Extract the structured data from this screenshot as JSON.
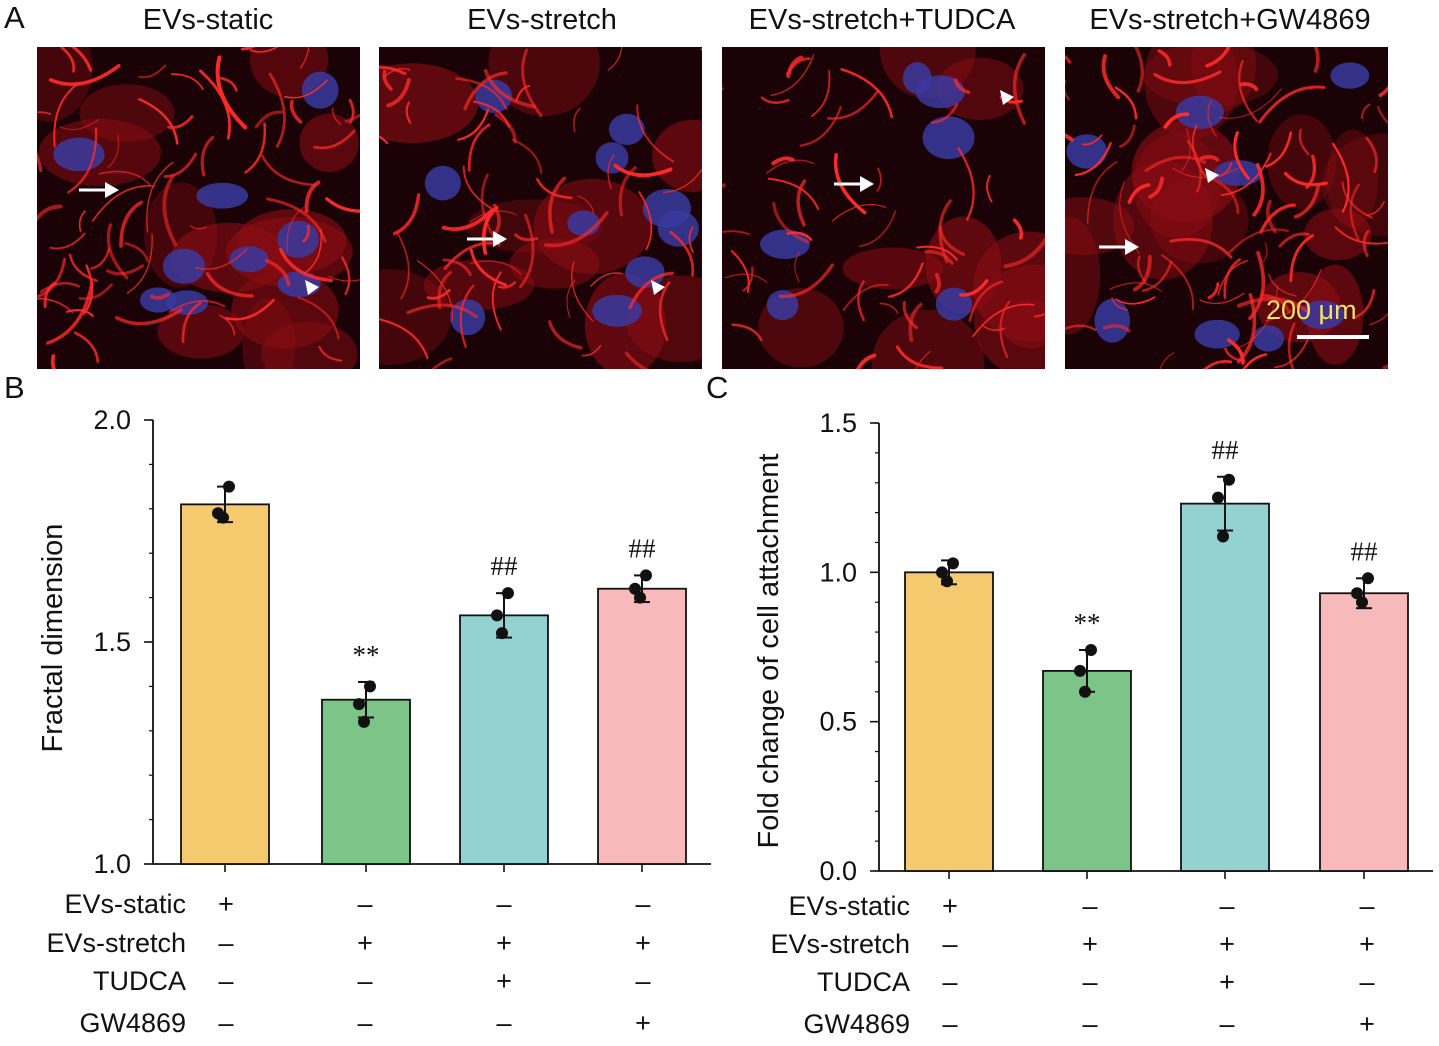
{
  "panel_labels": {
    "a": "A",
    "b": "B",
    "c": "C"
  },
  "micrographs": [
    {
      "title": "EVs-static",
      "seed": 11,
      "nuclei": 0.85,
      "fill": 0.65
    },
    {
      "title": "EVs-stretch",
      "seed": 23,
      "nuclei": 1.0,
      "fill": 0.45
    },
    {
      "title": "EVs-stretch+TUDCA",
      "seed": 37,
      "nuclei": 0.45,
      "fill": 0.35
    },
    {
      "title": "EVs-stretch+GW4869",
      "seed": 53,
      "nuclei": 0.7,
      "fill": 0.8
    }
  ],
  "scale_bar": {
    "label": "200 μm"
  },
  "colors": {
    "static": "#f5c96e",
    "stretch": "#7cc488",
    "tudca": "#93d2d0",
    "gw4869": "#f7b9b9",
    "actin": "#ff2a2a",
    "nucleus": "#3a3aa0",
    "background": "#1a0206"
  },
  "treatment_table": {
    "rows": [
      {
        "label": "EVs-static",
        "signs": [
          "+",
          "–",
          "–",
          "–"
        ]
      },
      {
        "label": "EVs-stretch",
        "signs": [
          "–",
          "+",
          "+",
          "+"
        ]
      },
      {
        "label": "TUDCA",
        "signs": [
          "–",
          "–",
          "+",
          "–"
        ]
      },
      {
        "label": "GW4869",
        "signs": [
          "–",
          "–",
          "–",
          "+"
        ]
      }
    ]
  },
  "chart_data": [
    {
      "panel": "B",
      "type": "bar",
      "categories": [
        "EVs-static",
        "EVs-stretch",
        "EVs-stretch+TUDCA",
        "EVs-stretch+GW4869"
      ],
      "values": [
        1.81,
        1.37,
        1.56,
        1.62
      ],
      "errors": [
        0.04,
        0.04,
        0.05,
        0.03
      ],
      "points": [
        [
          1.85,
          1.79,
          1.78
        ],
        [
          1.4,
          1.36,
          1.32
        ],
        [
          1.61,
          1.56,
          1.52
        ],
        [
          1.65,
          1.62,
          1.6
        ]
      ],
      "annotations": [
        "",
        "**",
        "##",
        "##"
      ],
      "title": "",
      "xlabel": "",
      "ylabel": "Fractal dimension",
      "ylim": [
        1.0,
        2.0
      ],
      "yticks": [
        1.0,
        1.5,
        2.0
      ],
      "ytick_labels": [
        "1.0",
        "1.5",
        "2.0"
      ],
      "grid": false,
      "legend": "none"
    },
    {
      "panel": "C",
      "type": "bar",
      "categories": [
        "EVs-static",
        "EVs-stretch",
        "EVs-stretch+TUDCA",
        "EVs-stretch+GW4869"
      ],
      "values": [
        1.0,
        0.67,
        1.23,
        0.93
      ],
      "errors": [
        0.04,
        0.07,
        0.09,
        0.05
      ],
      "points": [
        [
          1.03,
          1.0,
          0.97
        ],
        [
          0.74,
          0.67,
          0.6
        ],
        [
          1.31,
          1.25,
          1.12
        ],
        [
          0.98,
          0.93,
          0.9
        ]
      ],
      "annotations": [
        "",
        "**",
        "##",
        "##"
      ],
      "title": "",
      "xlabel": "",
      "ylabel": "Fold change of cell attachment",
      "ylim": [
        0.0,
        1.5
      ],
      "yticks": [
        0.0,
        0.5,
        1.0,
        1.5
      ],
      "ytick_labels": [
        "0.0",
        "0.5",
        "1.0",
        "1.5"
      ],
      "grid": false,
      "legend": "none"
    }
  ]
}
